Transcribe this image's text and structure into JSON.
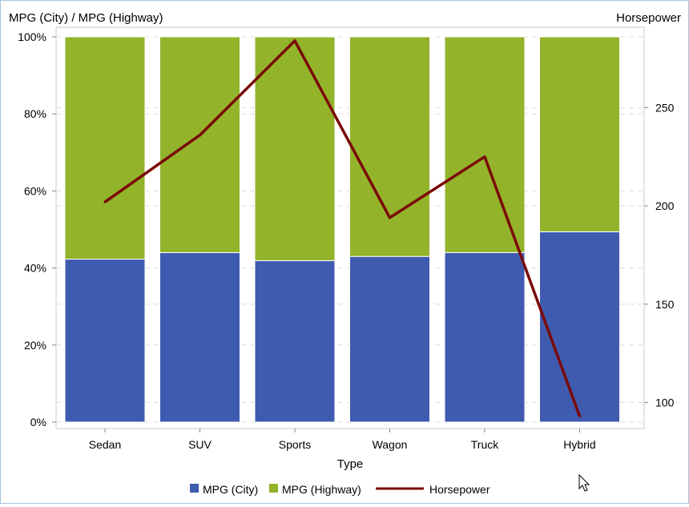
{
  "chart_data": {
    "type": "bar",
    "stacked_percent": true,
    "xlabel": "Type",
    "ylabel_left": "MPG (City) / MPG (Highway)",
    "ylabel_right": "Horsepower",
    "categories": [
      "Sedan",
      "SUV",
      "Sports",
      "Wagon",
      "Truck",
      "Hybrid"
    ],
    "series": [
      {
        "name": "MPG (City)",
        "type": "bar",
        "color": "#3f5bb0",
        "values": [
          42.3,
          44.0,
          41.9,
          43.0,
          44.0,
          49.4
        ]
      },
      {
        "name": "MPG (Highway)",
        "type": "bar",
        "color": "#93b32a",
        "values": [
          57.7,
          56.0,
          58.1,
          57.0,
          56.0,
          50.6
        ]
      },
      {
        "name": "Horsepower",
        "type": "line",
        "axis": "right",
        "color": "#7a0a08",
        "values": [
          202,
          236,
          284,
          194,
          225,
          93
        ]
      }
    ],
    "ylim_left": [
      0,
      100
    ],
    "ylim_right": [
      90,
      286
    ],
    "yticks_left": [
      "0%",
      "20%",
      "40%",
      "60%",
      "80%",
      "100%"
    ],
    "yticks_right": [
      100,
      150,
      200,
      250
    ],
    "grid": true,
    "legend_position": "bottom"
  }
}
